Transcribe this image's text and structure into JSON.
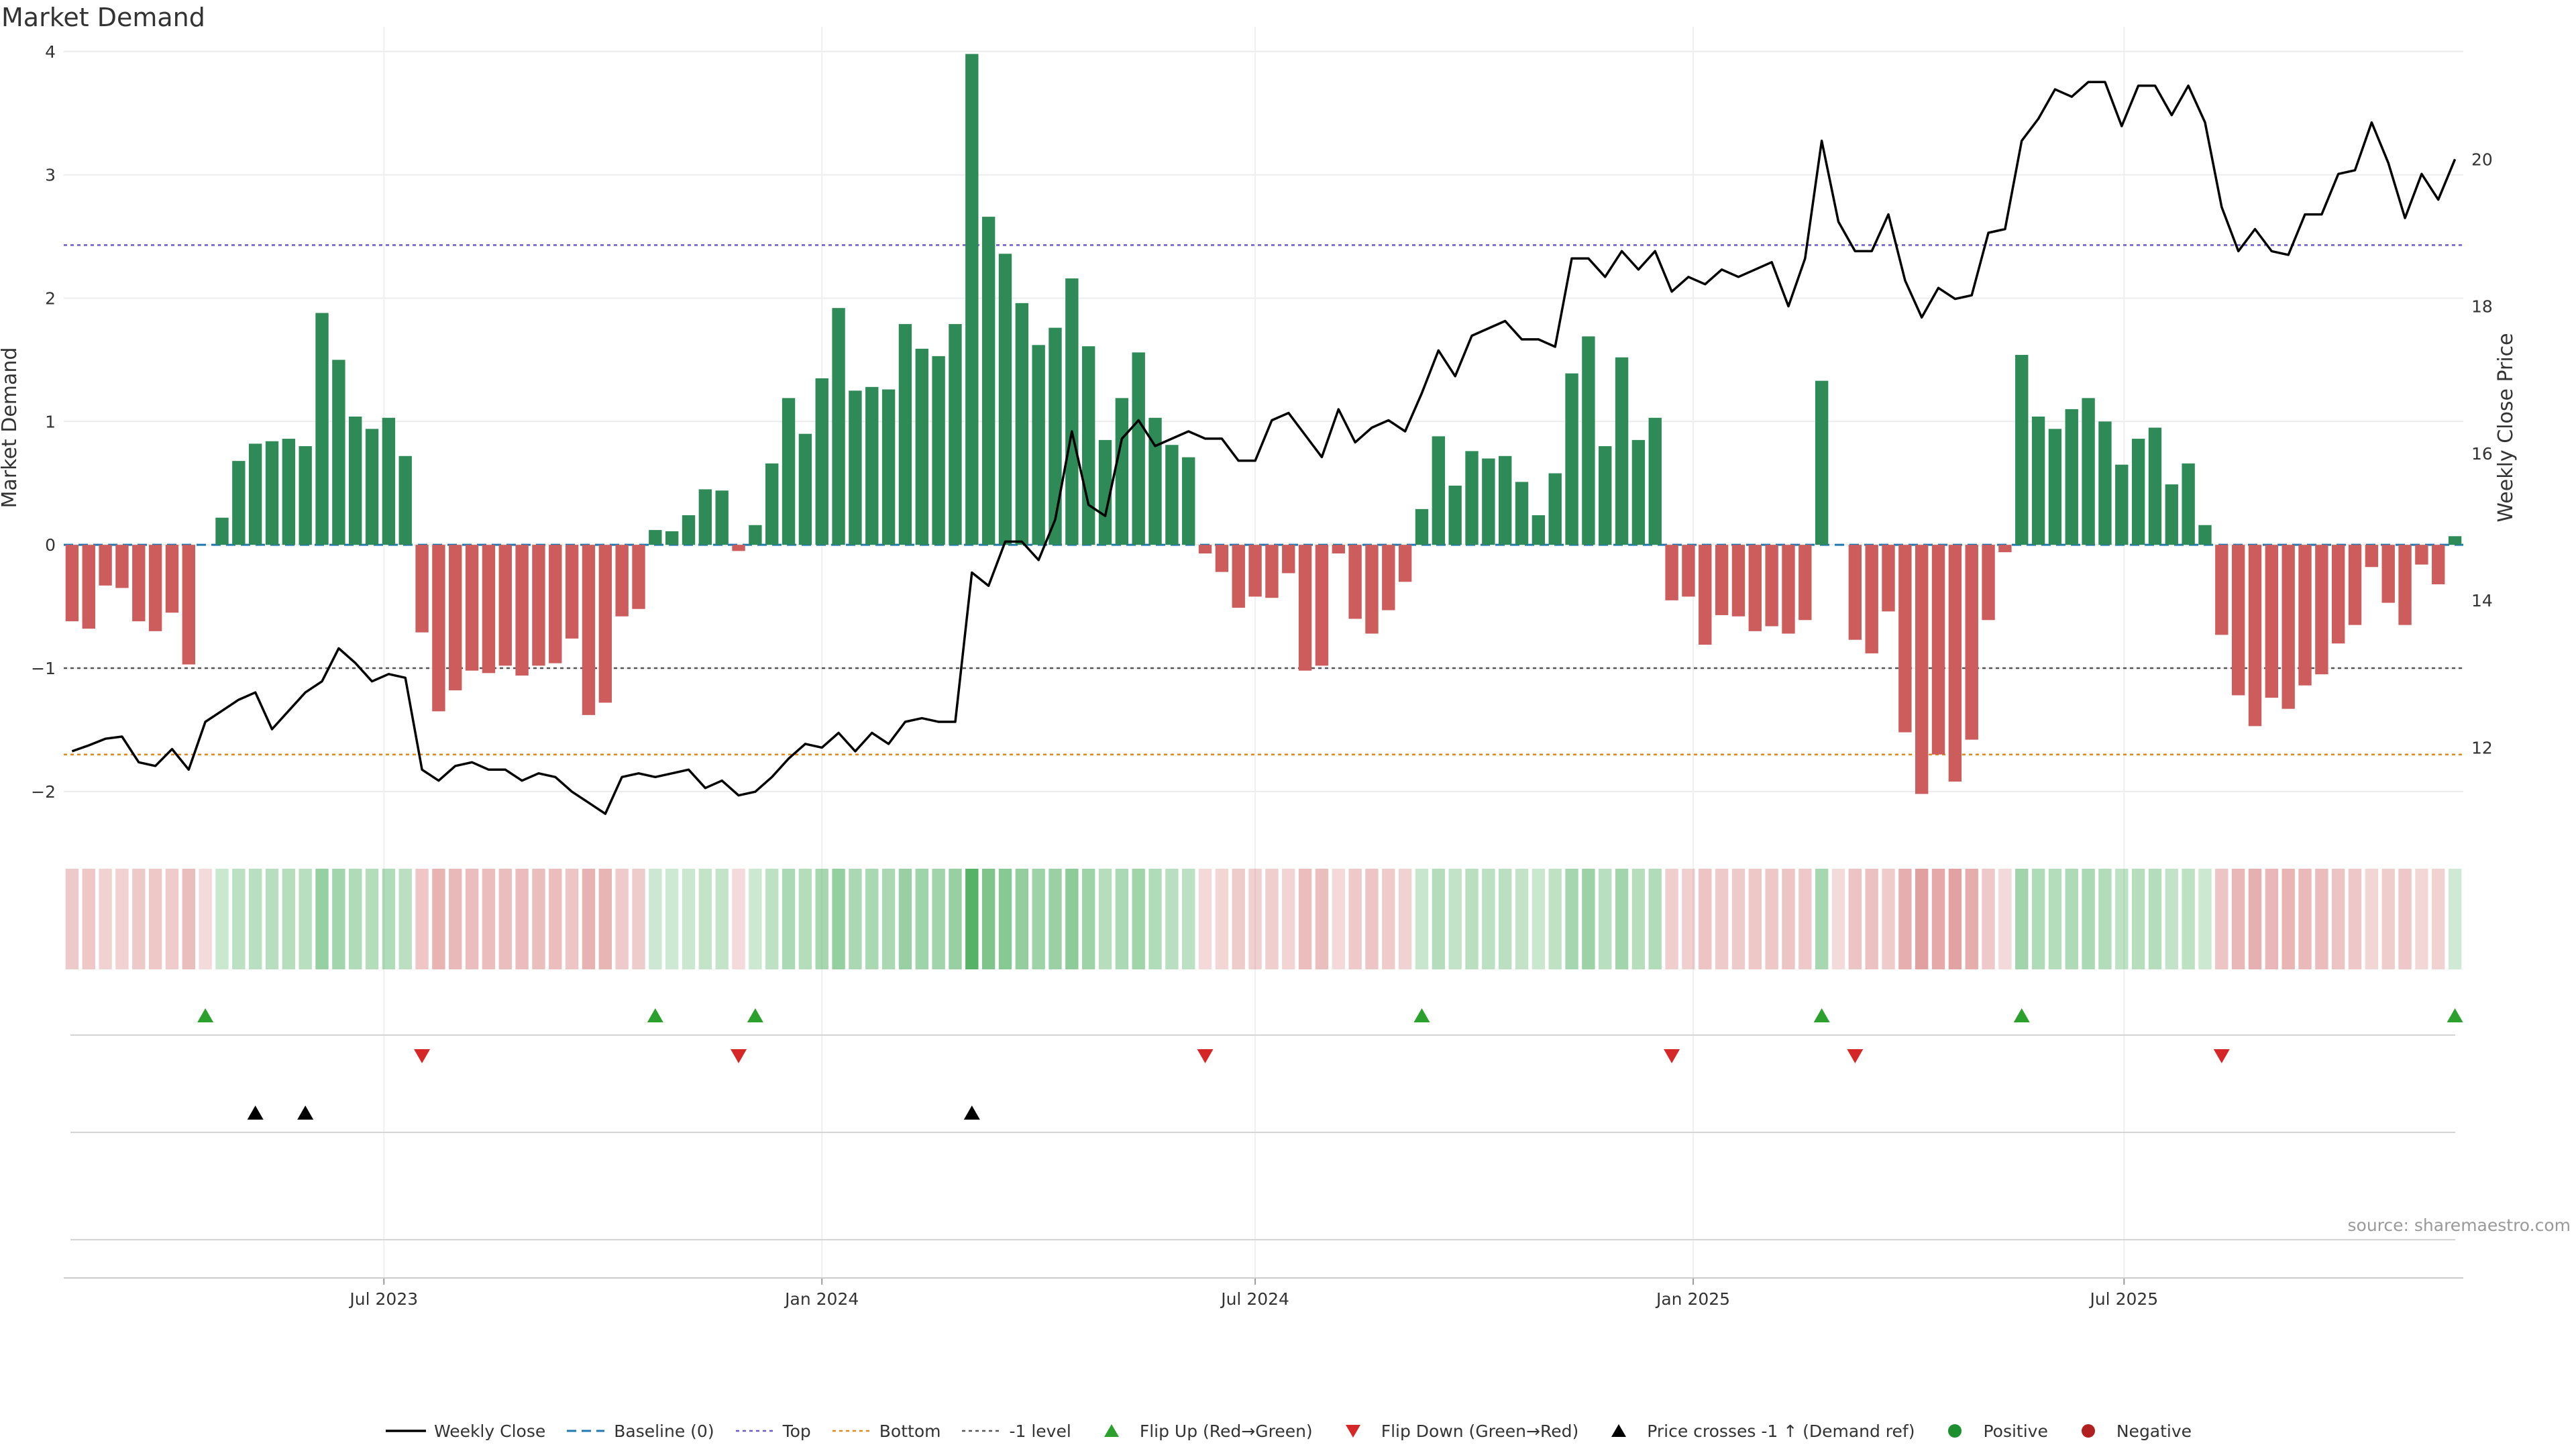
{
  "page": {
    "title": "Market Demand",
    "source": "source: sharemaestro.com"
  },
  "colors": {
    "green": "#2e8b57",
    "red": "#cd5c5c",
    "price_line": "#000000",
    "baseline": "#1f77b4",
    "top": "#6a5acd",
    "bottom": "#e08a1e",
    "minus1": "#555555",
    "flip_up": "#2ca02c",
    "flip_down": "#d62728",
    "cross": "#000000"
  },
  "legend": [
    {
      "key": "weekly_close",
      "label": "Weekly Close",
      "symbol": "line"
    },
    {
      "key": "baseline",
      "label": "Baseline (0)",
      "symbol": "dash"
    },
    {
      "key": "top",
      "label": "Top",
      "symbol": "dot"
    },
    {
      "key": "bottom",
      "label": "Bottom",
      "symbol": "dot"
    },
    {
      "key": "minus1",
      "label": "-1 level",
      "symbol": "dot"
    },
    {
      "key": "flip_up",
      "label": "Flip Up (Red→Green)",
      "symbol": "tri-up"
    },
    {
      "key": "flip_down",
      "label": "Flip Down (Green→Red)",
      "symbol": "tri-down"
    },
    {
      "key": "cross",
      "label": "Price crosses -1 ↑ (Demand ref)",
      "symbol": "tri-up"
    },
    {
      "key": "positive",
      "label": "Positive",
      "symbol": "circle"
    },
    {
      "key": "negative",
      "label": "Negative",
      "symbol": "circle"
    }
  ],
  "chart_data": {
    "type": "bar",
    "title": "Market Demand",
    "start_date": "2023-02-20",
    "interval_days": 7,
    "ylabel": "Market Demand",
    "y2label": "Weekly Close Price",
    "ylim": [
      -2.3,
      4.2
    ],
    "y2lim": [
      10.9,
      21.8
    ],
    "yticks": [
      -2,
      -1,
      0,
      1,
      2,
      3,
      4
    ],
    "y2ticks": [
      12,
      14,
      16,
      18,
      20
    ],
    "x_tick_labels": [
      {
        "label": "Jul 2023",
        "date": "2023-07-01"
      },
      {
        "label": "Jan 2024",
        "date": "2024-01-01"
      },
      {
        "label": "Jul 2024",
        "date": "2024-07-01"
      },
      {
        "label": "Jan 2025",
        "date": "2025-01-01"
      },
      {
        "label": "Jul 2025",
        "date": "2025-07-01"
      }
    ],
    "reference_lines": {
      "baseline": 0,
      "top": 2.43,
      "bottom": -1.7,
      "minus1": -1
    },
    "demand": [
      -0.62,
      -0.68,
      -0.33,
      -0.35,
      -0.62,
      -0.7,
      -0.55,
      -0.97,
      0,
      0.22,
      0.68,
      0.82,
      0.84,
      0.86,
      0.8,
      1.88,
      1.5,
      1.04,
      0.94,
      1.03,
      0.72,
      -0.71,
      -1.35,
      -1.18,
      -1.02,
      -1.04,
      -0.98,
      -1.06,
      -0.98,
      -0.96,
      -0.76,
      -1.38,
      -1.28,
      -0.58,
      -0.52,
      0.12,
      0.11,
      0.24,
      0.45,
      0.44,
      -0.05,
      0.16,
      0.66,
      1.19,
      0.9,
      1.35,
      1.92,
      1.25,
      1.28,
      1.26,
      1.79,
      1.59,
      1.53,
      1.79,
      3.98,
      2.66,
      2.36,
      1.96,
      1.62,
      1.76,
      2.16,
      1.61,
      0.85,
      1.19,
      1.56,
      1.03,
      0.81,
      0.71,
      -0.07,
      -0.22,
      -0.51,
      -0.42,
      -0.43,
      -0.23,
      -1.02,
      -0.98,
      -0.07,
      -0.6,
      -0.72,
      -0.53,
      -0.3,
      0.29,
      0.88,
      0.48,
      0.76,
      0.7,
      0.72,
      0.51,
      0.24,
      0.58,
      1.39,
      1.69,
      0.8,
      1.52,
      0.85,
      1.03,
      -0.45,
      -0.42,
      -0.81,
      -0.57,
      -0.58,
      -0.7,
      -0.66,
      -0.72,
      -0.61,
      1.33,
      0,
      -0.77,
      -0.88,
      -0.54,
      -1.52,
      -2.02,
      -1.7,
      -1.92,
      -1.58,
      -0.61,
      -0.06,
      1.54,
      1.04,
      0.94,
      1.1,
      1.19,
      1.0,
      0.65,
      0.86,
      0.95,
      0.49,
      0.66,
      0.16,
      -0.73,
      -1.22,
      -1.47,
      -1.24,
      -1.33,
      -1.14,
      -1.05,
      -0.8,
      -0.65,
      -0.18,
      -0.47,
      -0.65,
      -0.16,
      -0.32,
      0.07
    ],
    "weekly_close": [
      11.95,
      12.03,
      12.12,
      12.15,
      11.8,
      11.75,
      11.98,
      11.7,
      12.35,
      12.5,
      12.65,
      12.75,
      12.25,
      12.5,
      12.75,
      12.9,
      13.35,
      13.15,
      12.9,
      13.0,
      12.95,
      11.7,
      11.55,
      11.75,
      11.8,
      11.7,
      11.7,
      11.55,
      11.65,
      11.6,
      11.4,
      11.25,
      11.1,
      11.6,
      11.65,
      11.6,
      11.65,
      11.7,
      11.45,
      11.55,
      11.35,
      11.4,
      11.6,
      11.85,
      12.05,
      12.0,
      12.2,
      11.95,
      12.2,
      12.05,
      12.35,
      12.4,
      12.35,
      12.35,
      14.38,
      14.2,
      14.8,
      14.8,
      14.55,
      15.1,
      16.3,
      15.3,
      15.15,
      16.2,
      16.45,
      16.1,
      16.2,
      16.3,
      16.2,
      16.2,
      15.9,
      15.9,
      16.45,
      16.55,
      16.25,
      15.95,
      16.6,
      16.15,
      16.35,
      16.45,
      16.3,
      16.82,
      17.4,
      17.05,
      17.6,
      17.7,
      17.8,
      17.55,
      17.55,
      17.45,
      18.65,
      18.65,
      18.4,
      18.75,
      18.5,
      18.75,
      18.2,
      18.4,
      18.3,
      18.5,
      18.4,
      18.5,
      18.6,
      18.0,
      18.65,
      20.25,
      19.15,
      18.75,
      18.75,
      19.25,
      18.35,
      17.85,
      18.25,
      18.1,
      18.15,
      19.0,
      19.05,
      20.25,
      20.55,
      20.95,
      20.85,
      21.05,
      21.05,
      20.45,
      21.0,
      21.0,
      20.6,
      21.0,
      20.5,
      19.35,
      18.75,
      19.05,
      18.75,
      18.7,
      19.25,
      19.25,
      19.8,
      19.85,
      20.5,
      19.95,
      19.2,
      19.8,
      19.45,
      20.0
    ],
    "flip_up_idx": [
      8,
      35,
      41,
      81,
      105,
      117,
      143
    ],
    "flip_down_idx": [
      21,
      40,
      68,
      96,
      107,
      129
    ],
    "price_cross_idx": [
      11,
      14,
      54
    ]
  }
}
